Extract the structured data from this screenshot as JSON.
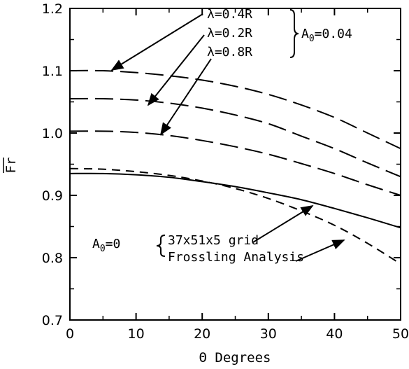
{
  "chart_data": {
    "type": "line",
    "xlabel": "Θ Degrees",
    "ylabel": "Fr",
    "xlim": [
      0,
      50
    ],
    "ylim": [
      0.7,
      1.2
    ],
    "xticks": [
      "0",
      "10",
      "20",
      "30",
      "40",
      "50"
    ],
    "yticks": [
      "0.7",
      "0.8",
      "0.9",
      "1.0",
      "1.1",
      "1.2"
    ],
    "grid": false,
    "series": [
      {
        "name": "λ=0.4R",
        "style": "dashed",
        "x": [
          0,
          5,
          10,
          15,
          20,
          25,
          30,
          35,
          40,
          45,
          50
        ],
        "y": [
          1.1,
          1.1,
          1.097,
          1.092,
          1.085,
          1.075,
          1.062,
          1.045,
          1.025,
          1.0,
          0.975
        ]
      },
      {
        "name": "λ=0.2R",
        "style": "dashed",
        "x": [
          0,
          5,
          10,
          15,
          20,
          25,
          30,
          35,
          40,
          45,
          50
        ],
        "y": [
          1.055,
          1.055,
          1.053,
          1.048,
          1.04,
          1.029,
          1.015,
          0.995,
          0.975,
          0.952,
          0.93
        ]
      },
      {
        "name": "λ=0.8R",
        "style": "dashed",
        "x": [
          0,
          5,
          10,
          15,
          20,
          25,
          30,
          35,
          40,
          45,
          50
        ],
        "y": [
          1.003,
          1.003,
          1.001,
          0.996,
          0.988,
          0.978,
          0.966,
          0.951,
          0.935,
          0.917,
          0.9
        ]
      },
      {
        "name": "37x51x5 grid",
        "style": "solid",
        "x": [
          0,
          5,
          10,
          15,
          20,
          25,
          30,
          35,
          40,
          45,
          50
        ],
        "y": [
          0.935,
          0.935,
          0.933,
          0.929,
          0.922,
          0.914,
          0.904,
          0.893,
          0.879,
          0.864,
          0.848
        ]
      },
      {
        "name": "Frossling Analysis",
        "style": "dashed-short",
        "x": [
          0,
          5,
          10,
          15,
          20,
          25,
          30,
          35,
          40,
          45,
          50
        ],
        "y": [
          0.943,
          0.942,
          0.938,
          0.932,
          0.923,
          0.911,
          0.895,
          0.875,
          0.852,
          0.823,
          0.79
        ]
      }
    ],
    "annotations": {
      "group_top": {
        "labels": [
          "λ=0.4R",
          "λ=0.2R",
          "λ=0.8R"
        ],
        "param": "A",
        "sub": "0",
        "value": "=0.04"
      },
      "group_bottom": {
        "param": "A",
        "sub": "0",
        "value": "=0",
        "labels": [
          "37x51x5 grid",
          "Frossling Analysis"
        ]
      }
    }
  }
}
